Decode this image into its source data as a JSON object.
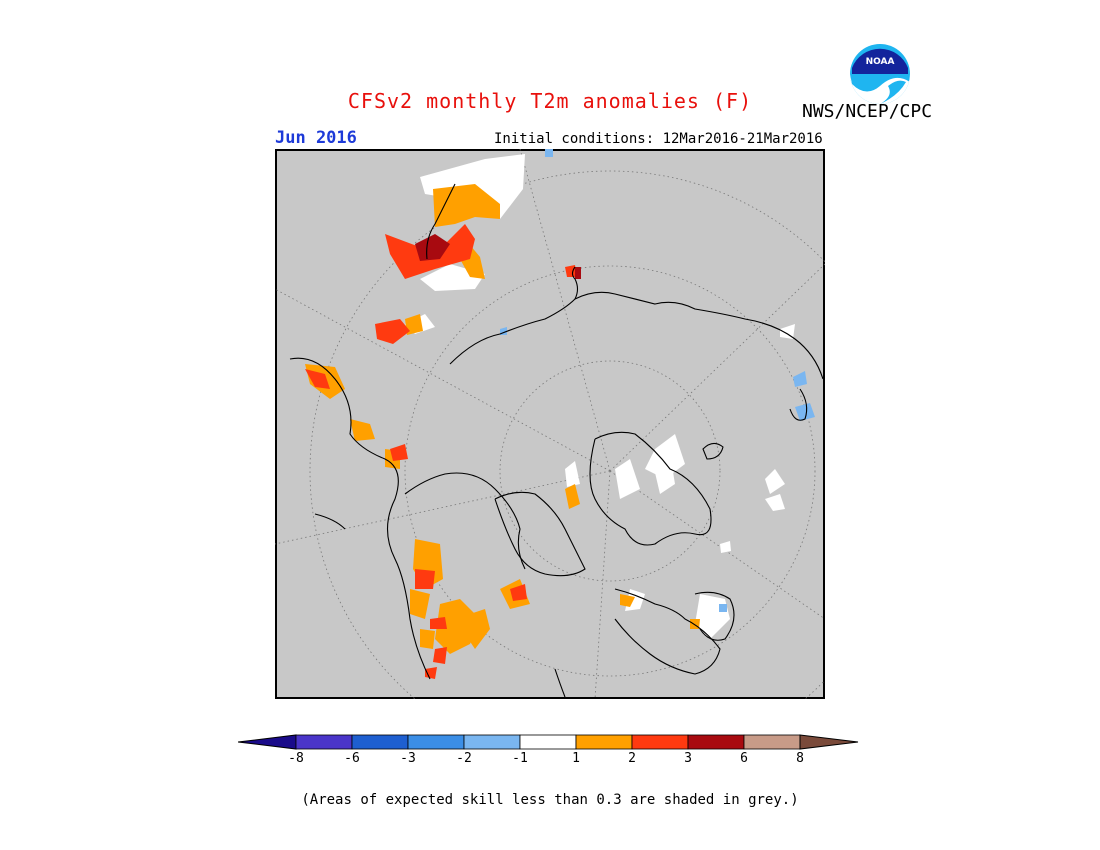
{
  "header": {
    "title": "CFSv2 monthly T2m anomalies (F)",
    "agency": "NWS/NCEP/CPC",
    "period": "Jun 2016",
    "initial_conditions": "Initial conditions: 12Mar2016-21Mar2016",
    "logo_text": "NOAA"
  },
  "colors": {
    "skill_grey": "#c8c8c8",
    "title_red": "#e8100c",
    "period_blue": "#1d3ad8"
  },
  "colorbar": {
    "left_arrow_color": "#1a0b8a",
    "right_arrow_color": "#7a4a3a",
    "bins": [
      {
        "color": "#4a35c9"
      },
      {
        "color": "#1e5fd0"
      },
      {
        "color": "#3b8ee6"
      },
      {
        "color": "#7ab6f0"
      },
      {
        "color": "#ffffff"
      },
      {
        "color": "#ffa000"
      },
      {
        "color": "#ff3a10"
      },
      {
        "color": "#a80a10"
      },
      {
        "color": "#c89b88"
      }
    ],
    "labels": [
      "-8",
      "-6",
      "-3",
      "-2",
      "-1",
      "1",
      "2",
      "3",
      "6",
      "8"
    ]
  },
  "footnote": "(Areas of expected skill less than 0.3 are shaded in grey.)"
}
